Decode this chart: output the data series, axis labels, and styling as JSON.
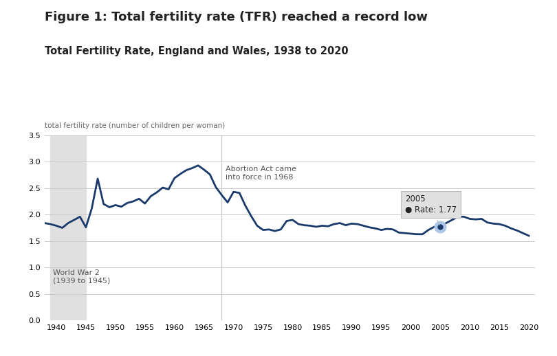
{
  "title": "Figure 1: Total fertility rate (TFR) reached a record low",
  "subtitle": "Total Fertility Rate, England and Wales, 1938 to 2020",
  "ylabel": "total fertility rate (number of children per woman)",
  "background_color": "#ffffff",
  "line_color": "#1a3a6b",
  "ww2_shade_color": "#e0e0e0",
  "ww2_start": 1939,
  "ww2_end": 1945,
  "abortion_act_year": 1968,
  "highlight_year": 2005,
  "highlight_value": 1.77,
  "ylim": [
    0,
    3.5
  ],
  "xlim": [
    1938,
    2021
  ],
  "yticks": [
    0,
    0.5,
    1,
    1.5,
    2,
    2.5,
    3,
    3.5
  ],
  "xticks": [
    1940,
    1945,
    1950,
    1955,
    1960,
    1965,
    1970,
    1975,
    1980,
    1985,
    1990,
    1995,
    2000,
    2005,
    2010,
    2015,
    2020
  ],
  "data": {
    "years": [
      1938,
      1939,
      1940,
      1941,
      1942,
      1943,
      1944,
      1945,
      1946,
      1947,
      1948,
      1949,
      1950,
      1951,
      1952,
      1953,
      1954,
      1955,
      1956,
      1957,
      1958,
      1959,
      1960,
      1961,
      1962,
      1963,
      1964,
      1965,
      1966,
      1967,
      1968,
      1969,
      1970,
      1971,
      1972,
      1973,
      1974,
      1975,
      1976,
      1977,
      1978,
      1979,
      1980,
      1981,
      1982,
      1983,
      1984,
      1985,
      1986,
      1987,
      1988,
      1989,
      1990,
      1991,
      1992,
      1993,
      1994,
      1995,
      1996,
      1997,
      1998,
      1999,
      2000,
      2001,
      2002,
      2003,
      2004,
      2005,
      2006,
      2007,
      2008,
      2009,
      2010,
      2011,
      2012,
      2013,
      2014,
      2015,
      2016,
      2017,
      2018,
      2019,
      2020
    ],
    "tfr": [
      1.84,
      1.82,
      1.79,
      1.75,
      1.84,
      1.9,
      1.96,
      1.76,
      2.12,
      2.68,
      2.2,
      2.14,
      2.18,
      2.15,
      2.22,
      2.25,
      2.3,
      2.21,
      2.35,
      2.42,
      2.51,
      2.48,
      2.69,
      2.77,
      2.84,
      2.88,
      2.93,
      2.85,
      2.76,
      2.52,
      2.37,
      2.23,
      2.43,
      2.41,
      2.17,
      1.97,
      1.79,
      1.71,
      1.72,
      1.69,
      1.72,
      1.88,
      1.9,
      1.82,
      1.8,
      1.79,
      1.77,
      1.79,
      1.78,
      1.82,
      1.84,
      1.8,
      1.83,
      1.82,
      1.79,
      1.76,
      1.74,
      1.71,
      1.73,
      1.72,
      1.66,
      1.65,
      1.64,
      1.63,
      1.63,
      1.71,
      1.77,
      1.77,
      1.84,
      1.9,
      1.96,
      1.96,
      1.92,
      1.91,
      1.92,
      1.85,
      1.83,
      1.82,
      1.79,
      1.74,
      1.7,
      1.65,
      1.6
    ]
  }
}
